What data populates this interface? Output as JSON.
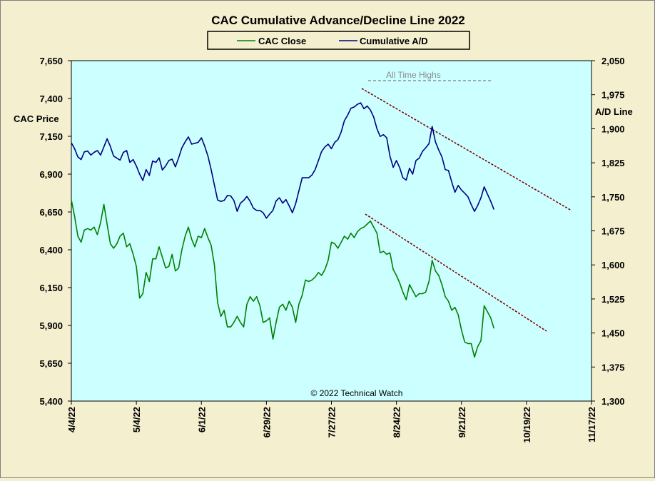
{
  "chart_data": {
    "type": "line",
    "title": "CAC Cumulative  Advance/Decline  Line  2022",
    "legend": {
      "placement": "top",
      "entries": [
        "CAC Close",
        "Cumulative A/D"
      ]
    },
    "ylabel_left": "CAC Price",
    "ylabel_right": "A/D Line",
    "ylim_left": [
      5400,
      7650
    ],
    "ylim_right": [
      1300,
      2050
    ],
    "yticks_left": [
      "7,650",
      "7,400",
      "7,150",
      "6,900",
      "6,650",
      "6,400",
      "6,150",
      "5,900",
      "5,650",
      "5,400"
    ],
    "yticks_right": [
      "2,050",
      "1,975",
      "1,900",
      "1,825",
      "1,750",
      "1,675",
      "1,600",
      "1,525",
      "1,450",
      "1,375",
      "1,300"
    ],
    "xticks": [
      "4/4/22",
      "5/4/22",
      "6/1/22",
      "6/29/22",
      "7/27/22",
      "8/24/22",
      "9/21/22",
      "10/19/22",
      "11/17/22"
    ],
    "xlim": [
      0,
      160
    ],
    "annotations": {
      "ath_label": "All Time Highs",
      "copyright": "© 2022 Technical  Watch"
    },
    "series": [
      {
        "name": "CAC Close",
        "color": "#008000",
        "values": [
          6730,
          6620,
          6490,
          6450,
          6530,
          6540,
          6530,
          6550,
          6500,
          6580,
          6700,
          6570,
          6440,
          6410,
          6440,
          6490,
          6510,
          6420,
          6440,
          6370,
          6290,
          6080,
          6110,
          6250,
          6190,
          6340,
          6340,
          6420,
          6350,
          6280,
          6290,
          6370,
          6260,
          6280,
          6400,
          6490,
          6550,
          6470,
          6420,
          6490,
          6480,
          6540,
          6480,
          6430,
          6300,
          6050,
          5960,
          6000,
          5890,
          5890,
          5920,
          5960,
          5920,
          5890,
          6040,
          6090,
          6060,
          6090,
          6030,
          5920,
          5930,
          5950,
          5810,
          5920,
          6020,
          6040,
          6000,
          6060,
          6020,
          5920,
          6040,
          6100,
          6200,
          6190,
          6200,
          6220,
          6250,
          6230,
          6270,
          6330,
          6450,
          6440,
          6410,
          6450,
          6490,
          6470,
          6510,
          6480,
          6520,
          6540,
          6550,
          6570,
          6590,
          6550,
          6510,
          6380,
          6390,
          6370,
          6380,
          6270,
          6230,
          6180,
          6120,
          6070,
          6170,
          6130,
          6090,
          6110,
          6110,
          6120,
          6190,
          6330,
          6260,
          6230,
          6170,
          6090,
          6060,
          6000,
          6020,
          5970,
          5870,
          5790,
          5780,
          5780,
          5690,
          5760,
          5800,
          6030,
          5990,
          5950,
          5880
        ]
      },
      {
        "name": "Cumulative A/D",
        "color": "#000080",
        "values": [
          1869,
          1856,
          1838,
          1832,
          1849,
          1851,
          1842,
          1848,
          1852,
          1842,
          1860,
          1878,
          1861,
          1840,
          1835,
          1831,
          1848,
          1852,
          1826,
          1832,
          1818,
          1800,
          1786,
          1810,
          1797,
          1829,
          1826,
          1836,
          1809,
          1818,
          1830,
          1833,
          1816,
          1836,
          1858,
          1871,
          1882,
          1866,
          1868,
          1870,
          1880,
          1862,
          1840,
          1810,
          1776,
          1743,
          1740,
          1742,
          1753,
          1752,
          1742,
          1718,
          1736,
          1742,
          1751,
          1740,
          1725,
          1720,
          1720,
          1715,
          1703,
          1712,
          1720,
          1741,
          1748,
          1736,
          1744,
          1730,
          1715,
          1735,
          1763,
          1792,
          1792,
          1792,
          1798,
          1810,
          1830,
          1850,
          1860,
          1866,
          1856,
          1870,
          1876,
          1893,
          1918,
          1930,
          1945,
          1948,
          1954,
          1957,
          1944,
          1950,
          1941,
          1926,
          1900,
          1883,
          1887,
          1880,
          1840,
          1815,
          1830,
          1814,
          1792,
          1787,
          1813,
          1800,
          1830,
          1835,
          1850,
          1858,
          1867,
          1905,
          1871,
          1853,
          1838,
          1810,
          1808,
          1783,
          1760,
          1775,
          1765,
          1758,
          1750,
          1733,
          1718,
          1731,
          1748,
          1772,
          1756,
          1740,
          1722
        ]
      }
    ]
  }
}
